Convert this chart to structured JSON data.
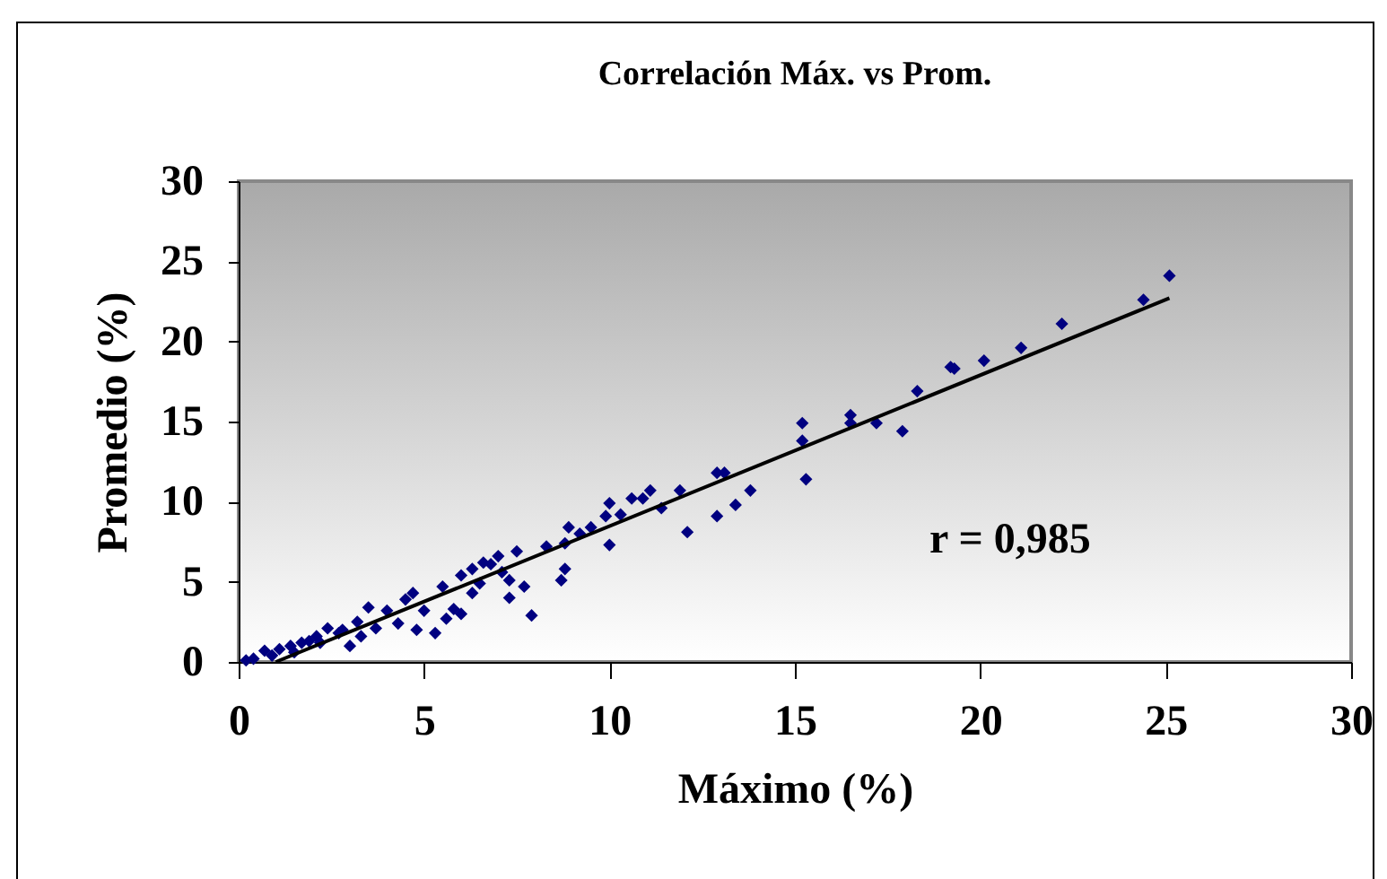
{
  "chart_data": {
    "type": "scatter",
    "title": "Correlación Máx. vs Prom.",
    "xlabel": "Máximo (%)",
    "ylabel": "Promedio (%)",
    "xlim": [
      0,
      30
    ],
    "ylim": [
      0,
      30
    ],
    "xticks": [
      0,
      5,
      10,
      15,
      20,
      25,
      30
    ],
    "yticks": [
      0,
      5,
      10,
      15,
      20,
      25,
      30
    ],
    "grid": false,
    "legend": false,
    "marker": "diamond",
    "annotations": [
      "r = 0,985"
    ],
    "series": [
      {
        "color": "#000080",
        "x": [
          0.2,
          0.4,
          0.7,
          1.1,
          1.4,
          1.7,
          2.1,
          2.4,
          2.7,
          3.0,
          3.5,
          3.7,
          4.0,
          4.3,
          4.7,
          5.0,
          5.3,
          5.6,
          6.0,
          6.0,
          6.3,
          6.3,
          6.6,
          7.0,
          7.3,
          7.3,
          7.5,
          7.7,
          7.9,
          8.3,
          8.7,
          8.8,
          8.8,
          8.9,
          9.2,
          9.5,
          9.9,
          10.0,
          10.0,
          10.3,
          10.6,
          10.9,
          11.1,
          11.4,
          11.9,
          12.1,
          12.9,
          12.9,
          13.1,
          13.4,
          13.8,
          15.2,
          15.2,
          15.3,
          16.5,
          16.5,
          17.2,
          17.9,
          18.3,
          19.2,
          19.3,
          20.1,
          21.1,
          22.2,
          24.4,
          25.1,
          1.9,
          2.8,
          3.2,
          4.5,
          5.5,
          6.8,
          2.2,
          3.3,
          4.8,
          5.8,
          6.5,
          7.1,
          0.9,
          1.5
        ],
        "values": [
          0.1,
          0.2,
          0.7,
          0.8,
          1.0,
          1.2,
          1.6,
          2.1,
          1.8,
          1.0,
          3.4,
          2.1,
          3.2,
          2.4,
          4.3,
          3.2,
          1.8,
          2.7,
          5.4,
          3.0,
          5.8,
          4.3,
          6.2,
          6.6,
          5.1,
          4.0,
          6.9,
          4.7,
          2.9,
          7.2,
          5.1,
          5.8,
          7.4,
          8.4,
          8.0,
          8.4,
          9.1,
          9.9,
          7.3,
          9.2,
          10.2,
          10.2,
          10.7,
          9.6,
          10.7,
          8.1,
          9.1,
          11.8,
          11.8,
          9.8,
          10.7,
          14.9,
          13.8,
          11.4,
          15.4,
          14.9,
          14.9,
          14.4,
          16.9,
          18.4,
          18.3,
          18.8,
          19.6,
          21.1,
          22.6,
          24.1,
          1.3,
          2.0,
          2.5,
          3.9,
          4.7,
          6.1,
          1.2,
          1.6,
          2.0,
          3.3,
          4.9,
          5.6,
          0.4,
          0.6
        ]
      },
      {
        "type": "line",
        "marker": "none",
        "color": "#000000",
        "x": [
          1.0,
          25.1
        ],
        "values": [
          0,
          22.7
        ]
      }
    ]
  }
}
